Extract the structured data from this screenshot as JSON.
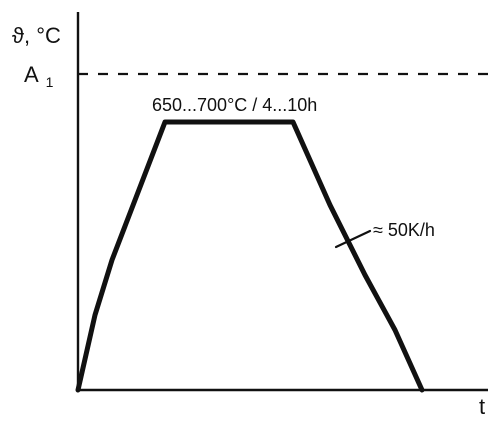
{
  "diagram": {
    "y_axis_label": "ϑ, °C",
    "x_axis_label": "t",
    "reference_line_label": {
      "main": "A",
      "subscript": "1"
    },
    "hold_annotation": "650...700°C / 4...10h",
    "cooling_rate_annotation": "≈ 50K/h"
  },
  "colors": {
    "line": "#111111",
    "background": "#ffffff"
  }
}
